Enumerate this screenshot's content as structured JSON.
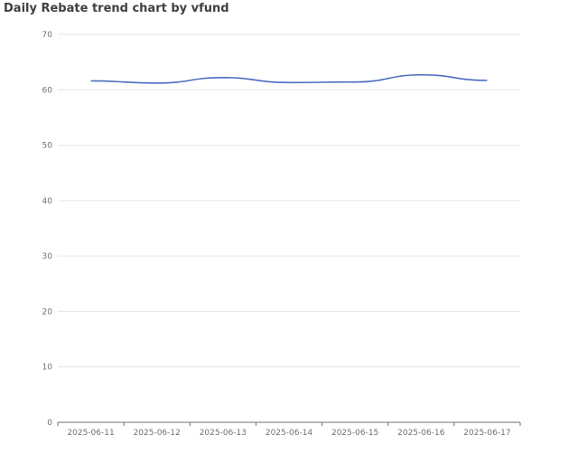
{
  "chart_data": {
    "type": "line",
    "title": "Daily Rebate trend chart by vfund",
    "x": [
      "2025-06-11",
      "2025-06-12",
      "2025-06-13",
      "2025-06-14",
      "2025-06-15",
      "2025-06-16",
      "2025-06-17"
    ],
    "series": [
      {
        "values": [
          61.6,
          61.2,
          62.2,
          61.3,
          61.4,
          62.7,
          61.7
        ],
        "color": "#4a6cc0"
      }
    ],
    "ylim": [
      0,
      70
    ],
    "yticks": [
      0,
      10,
      20,
      30,
      40,
      50,
      60,
      70
    ],
    "grid": true,
    "smooth": true
  }
}
